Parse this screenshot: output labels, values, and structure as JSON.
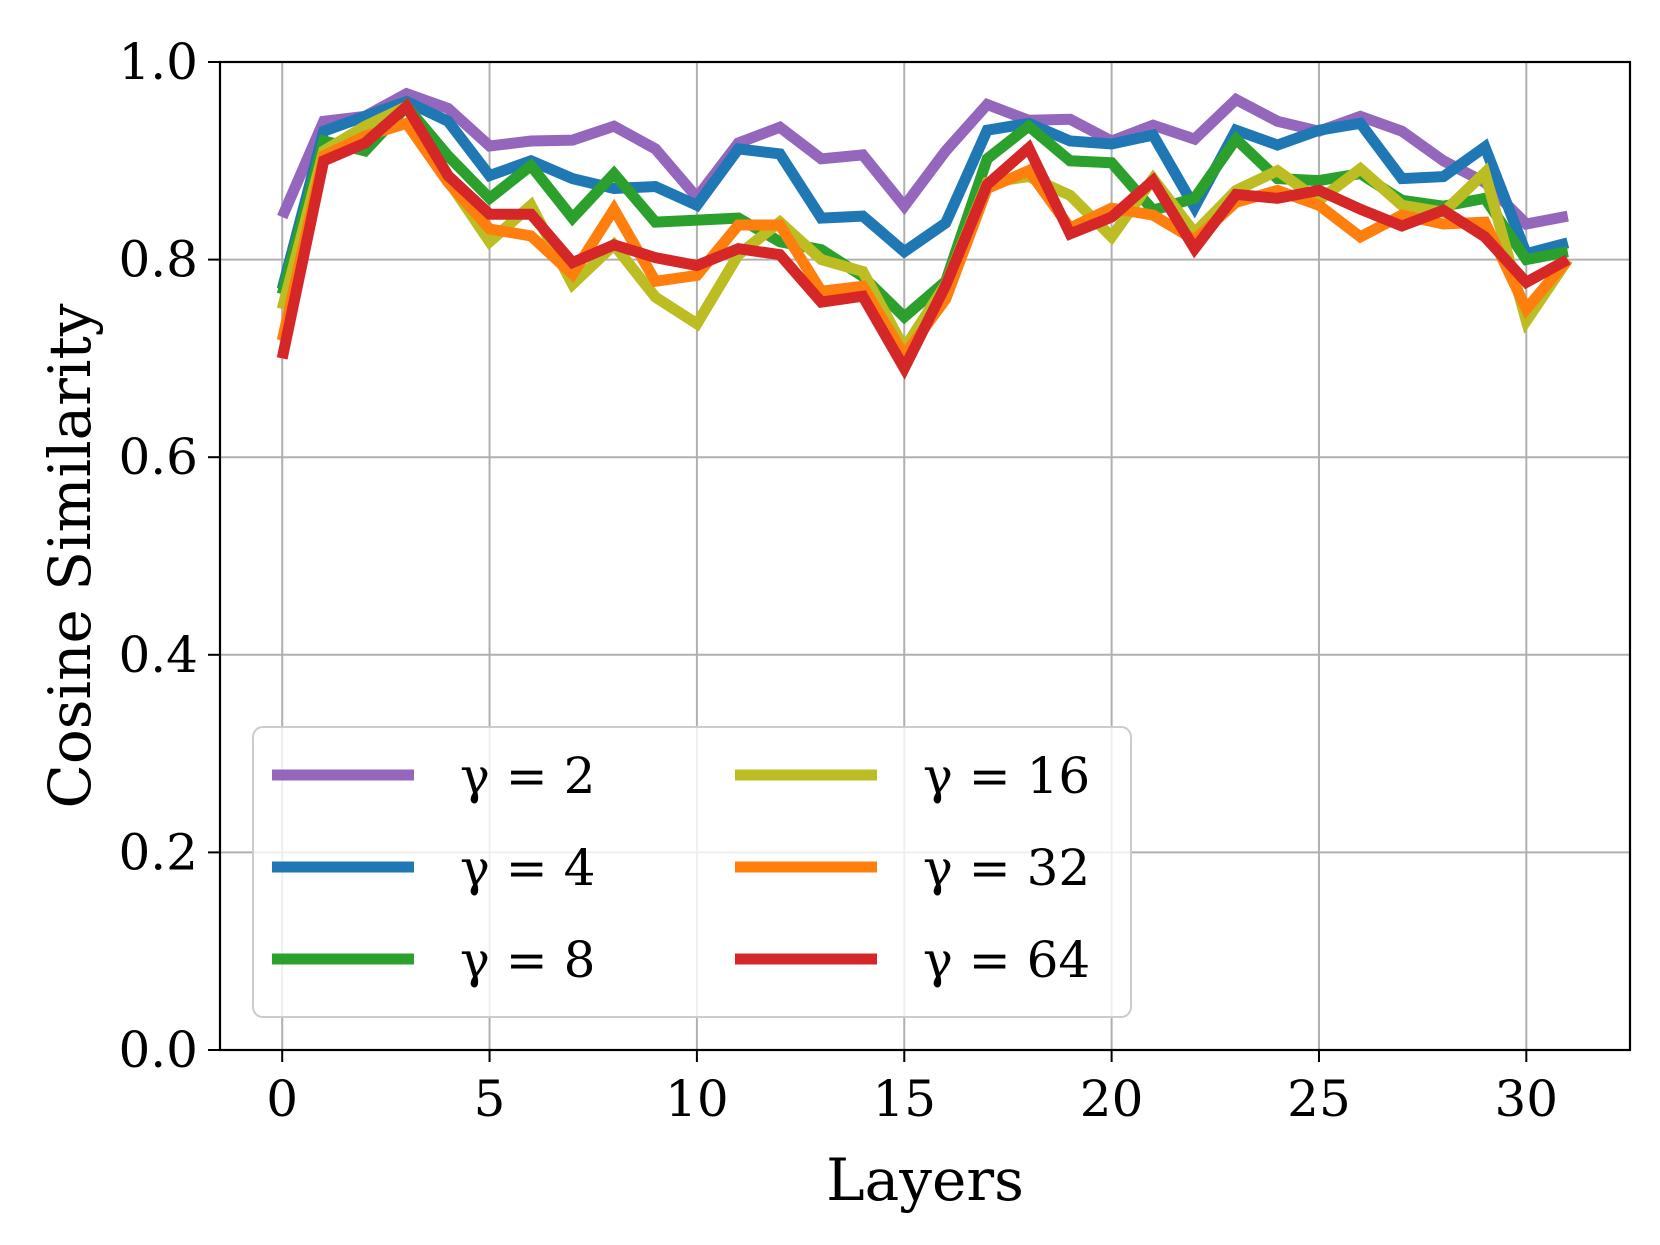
{
  "chart_data": {
    "type": "line",
    "title": "",
    "xlabel": "Layers",
    "ylabel": "Cosine Similarity",
    "xlim": [
      -1.5,
      32.5
    ],
    "ylim": [
      0.0,
      1.0
    ],
    "xticks": [
      0,
      5,
      10,
      15,
      20,
      25,
      30
    ],
    "xtick_labels": [
      "0",
      "5",
      "10",
      "15",
      "20",
      "25",
      "30"
    ],
    "yticks": [
      0.0,
      0.2,
      0.4,
      0.6,
      0.8,
      1.0
    ],
    "ytick_labels": [
      "0.0",
      "0.2",
      "0.4",
      "0.6",
      "0.8",
      "1.0"
    ],
    "grid": true,
    "legend_position": "lower-left",
    "legend_columns": 2,
    "x": [
      0,
      1,
      2,
      3,
      4,
      5,
      6,
      7,
      8,
      9,
      10,
      11,
      12,
      13,
      14,
      15,
      16,
      17,
      18,
      19,
      20,
      21,
      22,
      23,
      24,
      25,
      26,
      27,
      28,
      29,
      30,
      31
    ],
    "series": [
      {
        "name": "γ = 2",
        "color": "#9467bd",
        "values": [
          0.843,
          0.94,
          0.945,
          0.968,
          0.953,
          0.915,
          0.92,
          0.921,
          0.935,
          0.912,
          0.863,
          0.918,
          0.934,
          0.902,
          0.906,
          0.854,
          0.91,
          0.957,
          0.941,
          0.942,
          0.92,
          0.936,
          0.922,
          0.962,
          0.94,
          0.93,
          0.945,
          0.93,
          0.9,
          0.878,
          0.836,
          0.844
        ]
      },
      {
        "name": "γ = 4",
        "color": "#1f77b4",
        "values": [
          0.77,
          0.93,
          0.945,
          0.96,
          0.94,
          0.885,
          0.9,
          0.882,
          0.872,
          0.874,
          0.855,
          0.912,
          0.907,
          0.842,
          0.844,
          0.808,
          0.837,
          0.931,
          0.938,
          0.92,
          0.917,
          0.926,
          0.853,
          0.931,
          0.916,
          0.931,
          0.938,
          0.882,
          0.884,
          0.914,
          0.806,
          0.817
        ]
      },
      {
        "name": "γ = 8",
        "color": "#2ca02c",
        "values": [
          0.765,
          0.92,
          0.91,
          0.955,
          0.905,
          0.862,
          0.895,
          0.842,
          0.887,
          0.838,
          0.84,
          0.842,
          0.818,
          0.81,
          0.783,
          0.742,
          0.778,
          0.902,
          0.935,
          0.9,
          0.898,
          0.85,
          0.862,
          0.922,
          0.882,
          0.88,
          0.887,
          0.86,
          0.854,
          0.862,
          0.8,
          0.808
        ]
      },
      {
        "name": "γ = 16",
        "color": "#bcbd22",
        "values": [
          0.75,
          0.91,
          0.935,
          0.955,
          0.88,
          0.818,
          0.855,
          0.775,
          0.815,
          0.762,
          0.735,
          0.805,
          0.838,
          0.8,
          0.788,
          0.71,
          0.775,
          0.878,
          0.884,
          0.865,
          0.823,
          0.882,
          0.827,
          0.87,
          0.89,
          0.86,
          0.892,
          0.855,
          0.848,
          0.888,
          0.738,
          0.8
        ]
      },
      {
        "name": "γ = 32",
        "color": "#ff7f0e",
        "values": [
          0.718,
          0.905,
          0.925,
          0.938,
          0.878,
          0.831,
          0.824,
          0.785,
          0.851,
          0.778,
          0.784,
          0.835,
          0.835,
          0.768,
          0.773,
          0.703,
          0.76,
          0.872,
          0.89,
          0.832,
          0.852,
          0.845,
          0.82,
          0.858,
          0.87,
          0.855,
          0.823,
          0.845,
          0.836,
          0.838,
          0.75,
          0.8
        ]
      },
      {
        "name": "γ = 64",
        "color": "#d62728",
        "values": [
          0.7,
          0.9,
          0.918,
          0.955,
          0.885,
          0.846,
          0.846,
          0.797,
          0.815,
          0.802,
          0.794,
          0.811,
          0.805,
          0.757,
          0.763,
          0.69,
          0.774,
          0.876,
          0.913,
          0.826,
          0.843,
          0.88,
          0.811,
          0.866,
          0.862,
          0.87,
          0.851,
          0.834,
          0.85,
          0.823,
          0.777,
          0.8
        ]
      }
    ]
  }
}
